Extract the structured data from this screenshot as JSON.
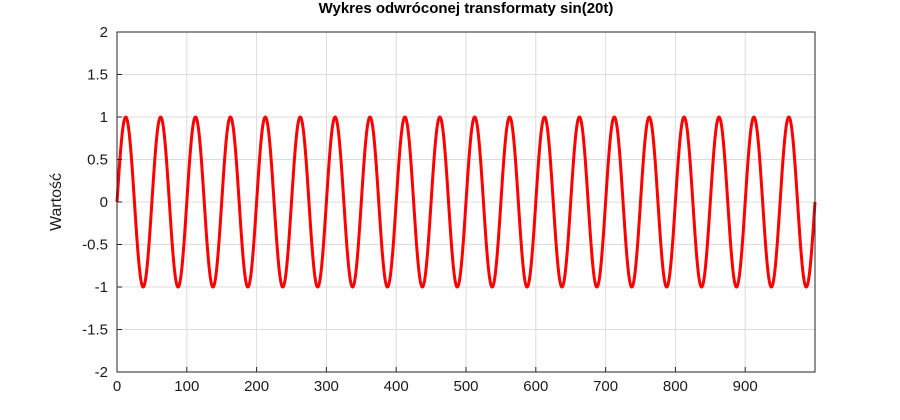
{
  "chart_data": {
    "type": "line",
    "title": "Wykres odwróconej transformaty sin(20t)",
    "xlabel": "",
    "ylabel": "Wartość",
    "xlim": [
      0,
      1000
    ],
    "ylim": [
      -2,
      2
    ],
    "grid": true,
    "x_ticks": [
      0,
      100,
      200,
      300,
      400,
      500,
      600,
      700,
      800,
      900
    ],
    "y_ticks": [
      2,
      1.5,
      1,
      0.5,
      0,
      -0.5,
      -1,
      -1.5,
      -2
    ],
    "series": [
      {
        "function": "sin(20t)",
        "color": "#ff0000",
        "x_start": 0,
        "x_end": 1000,
        "amplitude": 1,
        "period": 50,
        "cycles": 20
      }
    ]
  }
}
